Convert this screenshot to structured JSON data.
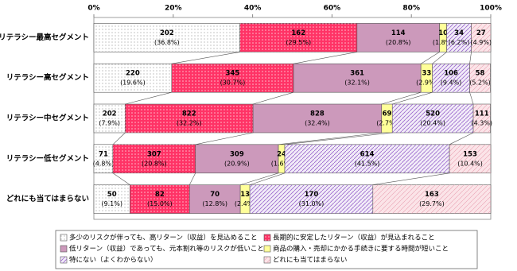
{
  "chart_data": {
    "type": "stacked-bar-100",
    "categories": [
      "リテラシー最高セグメント",
      "リテラシー高セグメント",
      "リテラシー中セグメント",
      "リテラシー低セグメント",
      "どれにも当てはまらない"
    ],
    "series": [
      {
        "name": "多少のリスクが伴っても、高リターン（収益）を見込めること",
        "color": "#ffffff",
        "values": [
          36.8,
          19.6,
          7.9,
          4.8,
          9.1
        ],
        "value_labels": [
          "(36.8%)",
          "(19.6%)",
          "(7.9%)",
          "(4.8%)",
          "(9.1%)"
        ],
        "counts": [
          202,
          220,
          202,
          71,
          50
        ]
      },
      {
        "name": "長期的に安定したリターン（収益）が見込まれること",
        "color": "#ff3366",
        "values": [
          29.5,
          30.7,
          32.2,
          20.8,
          15.0
        ],
        "value_labels": [
          "(29.5%)",
          "(30.7%)",
          "(32.2%)",
          "(20.8%)",
          "(15.0%)"
        ],
        "counts": [
          162,
          345,
          822,
          307,
          82
        ]
      },
      {
        "name": "低リターン（収益）であっても、元本割れ等のリスクが低いこと",
        "color": "#cc99bb",
        "values": [
          20.8,
          32.1,
          32.4,
          20.9,
          12.8
        ],
        "value_labels": [
          "(20.8%)",
          "(32.1%)",
          "(32.4%)",
          "(20.9%)",
          "(12.8%)"
        ],
        "counts": [
          114,
          361,
          828,
          309,
          70
        ]
      },
      {
        "name": "商品の購入・売却にかかる手続きに要する時間が短いこと",
        "color": "#ffff99",
        "values": [
          1.8,
          2.9,
          2.7,
          1.6,
          2.4
        ],
        "value_labels": [
          "(1.8%)",
          "(2.9%)",
          "(2.7%)",
          "(1.6%)",
          "(2.4%)"
        ],
        "counts": [
          10,
          33,
          69,
          24,
          13
        ]
      },
      {
        "name": "特にない（よくわからない）",
        "color": "#f2ecf8",
        "values": [
          6.2,
          9.4,
          20.4,
          41.5,
          31.0
        ],
        "value_labels": [
          "(6.2%)",
          "(9.4%)",
          "(20.4%)",
          "(41.5%)",
          "(31.0%)"
        ],
        "counts": [
          34,
          106,
          520,
          614,
          170
        ]
      },
      {
        "name": "どれにも当てはまらない",
        "color": "#fbe4e8",
        "values": [
          4.9,
          5.2,
          4.3,
          10.4,
          29.7
        ],
        "value_labels": [
          "(4.9%)",
          "(5.2%)",
          "(4.3%)",
          "(10.4%)",
          "(29.7%)"
        ],
        "counts": [
          27,
          58,
          111,
          153,
          163
        ]
      }
    ],
    "xlim": [
      0,
      100
    ],
    "xticks": [
      {
        "value": 0,
        "label": "0%"
      },
      {
        "value": 20,
        "label": "20%"
      },
      {
        "value": 40,
        "label": "40%"
      },
      {
        "value": 60,
        "label": "60%"
      },
      {
        "value": 80,
        "label": "80%"
      },
      {
        "value": 100,
        "label": "100%"
      }
    ]
  }
}
